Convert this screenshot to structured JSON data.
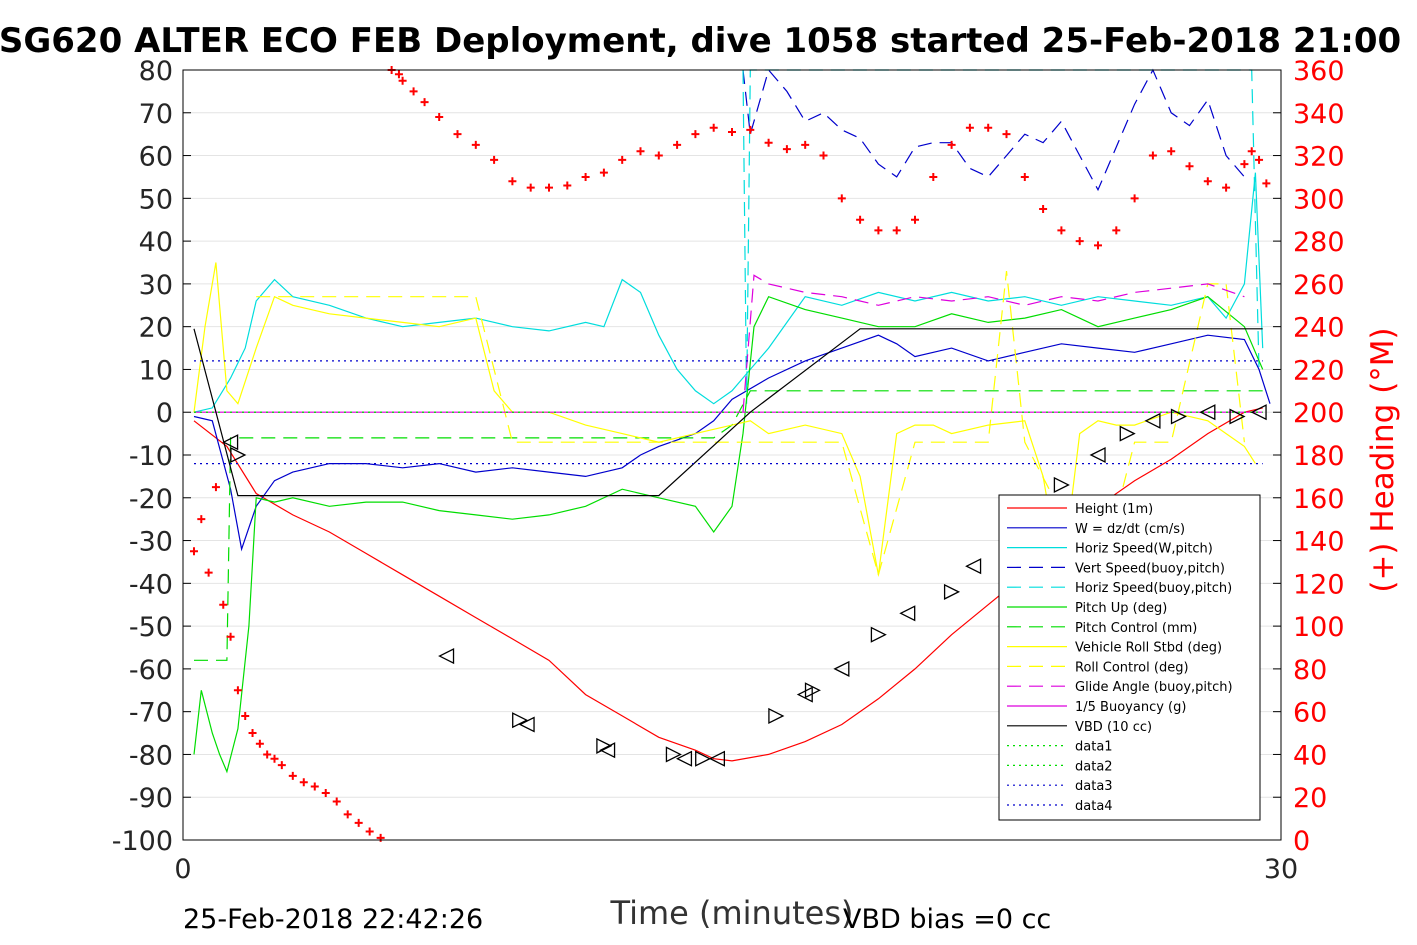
{
  "chart_data": {
    "type": "line",
    "title": "SG620 ALTER ECO FEB Deployment, dive 1058 started 25-Feb-2018 21:00",
    "xlabel": "Time (minutes)",
    "ylabel_right": "(+) Heading (°M)",
    "xlim": [
      0,
      30
    ],
    "ylim": [
      -100,
      80
    ],
    "ylim_right": [
      0,
      360
    ],
    "x_ticks": [
      "0",
      "30"
    ],
    "y_ticks": [
      "80",
      "70",
      "60",
      "50",
      "40",
      "30",
      "20",
      "10",
      "0",
      "-10",
      "-20",
      "-30",
      "-40",
      "-50",
      "-60",
      "-70",
      "-80",
      "-90",
      "-100"
    ],
    "y_right_ticks": [
      "360",
      "340",
      "320",
      "300",
      "280",
      "260",
      "240",
      "220",
      "200",
      "180",
      "160",
      "140",
      "120",
      "100",
      "80",
      "60",
      "40",
      "20",
      "0"
    ],
    "footer_left": "25-Feb-2018 22:42:26",
    "footer_right": "VBD bias =0 cc",
    "grid": "horizontal",
    "legend_position": "bottom-right",
    "series": [
      {
        "name": "Height (1m)",
        "color": "#ff0000",
        "style": "solid",
        "x": [
          0.3,
          1.2,
          2.0,
          3.0,
          4.0,
          5.0,
          6.0,
          7.0,
          8.0,
          9.0,
          10.0,
          10.5,
          11.0,
          12.0,
          13.0,
          14.0,
          14.5,
          15.0,
          16.0,
          17.0,
          18.0,
          19.0,
          20.0,
          21.0,
          22.0,
          23.0,
          24.0,
          25.0,
          26.0,
          27.0,
          28.0,
          29.0,
          29.5
        ],
        "y": [
          -2,
          -8,
          -19,
          -24,
          -28,
          -33,
          -38,
          -43,
          -48,
          -53,
          -58,
          -62,
          -66,
          -71,
          -76,
          -79,
          -81,
          -81.5,
          -80,
          -77,
          -73,
          -67,
          -60,
          -52,
          -45,
          -38,
          -30,
          -22,
          -16,
          -11,
          -5,
          0,
          1
        ]
      },
      {
        "name": "W = dz/dt (cm/s)",
        "color": "#0000cc",
        "style": "solid",
        "x": [
          0.3,
          0.8,
          1.3,
          1.6,
          2.0,
          2.5,
          3.0,
          3.5,
          4.0,
          5.0,
          6.0,
          7.0,
          8.0,
          9.0,
          10.0,
          11.0,
          12.0,
          12.5,
          13.0,
          14.0,
          14.5,
          15.0,
          16.0,
          17.0,
          18.0,
          19.0,
          19.5,
          20.0,
          21.0,
          22.0,
          23.0,
          24.0,
          25.0,
          26.0,
          27.0,
          28.0,
          29.0,
          29.4,
          29.7
        ],
        "y": [
          -1,
          -2,
          -18,
          -32,
          -22,
          -16,
          -14,
          -13,
          -12,
          -12,
          -13,
          -12,
          -14,
          -13,
          -14,
          -15,
          -13,
          -10,
          -8,
          -5,
          -2,
          3,
          8,
          12,
          15,
          18,
          16,
          13,
          15,
          12,
          14,
          16,
          15,
          14,
          16,
          18,
          17,
          10,
          2
        ]
      },
      {
        "name": "Horiz Speed(W,pitch)",
        "color": "#00dddd",
        "style": "solid",
        "x": [
          0.3,
          0.8,
          1.3,
          1.7,
          2.0,
          2.5,
          3.0,
          4.0,
          5.0,
          6.0,
          7.0,
          8.0,
          9.0,
          10.0,
          11.0,
          11.5,
          12.0,
          12.5,
          13.0,
          13.5,
          14.0,
          14.5,
          15.0,
          15.5,
          16.0,
          17.0,
          18.0,
          19.0,
          20.0,
          21.0,
          22.0,
          23.0,
          24.0,
          25.0,
          26.0,
          27.0,
          28.0,
          28.5,
          29.0,
          29.3,
          29.5
        ],
        "y": [
          0,
          1,
          8,
          15,
          26,
          31,
          27,
          25,
          22,
          20,
          21,
          22,
          20,
          19,
          21,
          20,
          31,
          28,
          18,
          10,
          5,
          2,
          5,
          10,
          15,
          27,
          25,
          28,
          26,
          28,
          26,
          27,
          25,
          27,
          26,
          25,
          27,
          22,
          30,
          56,
          15
        ]
      },
      {
        "name": "Vert Speed(buoy,pitch)",
        "color": "#0000cc",
        "style": "dashed",
        "x": [
          15.3,
          15.5,
          16.0,
          16.5,
          17.0,
          17.5,
          18.0,
          18.5,
          19.0,
          19.5,
          20.0,
          20.5,
          21.0,
          21.5,
          22.0,
          22.5,
          23.0,
          23.5,
          24.0,
          24.5,
          25.0,
          25.5,
          26.0,
          26.5,
          27.0,
          27.5,
          28.0,
          28.5,
          29.0
        ],
        "y": [
          80,
          65,
          80,
          75,
          68,
          70,
          66,
          64,
          58,
          55,
          62,
          63,
          63,
          57,
          55,
          60,
          65,
          63,
          68,
          60,
          52,
          62,
          72,
          80,
          70,
          67,
          73,
          60,
          55
        ]
      },
      {
        "name": "Horiz Speed(buoy,pitch)",
        "color": "#00dddd",
        "style": "dashed",
        "x": [
          15.3,
          15.4,
          15.5,
          29.2,
          29.4
        ],
        "y": [
          80,
          2,
          80,
          80,
          10
        ]
      },
      {
        "name": "Pitch Up (deg)",
        "color": "#00dd00",
        "style": "solid",
        "x": [
          0.3,
          0.5,
          0.8,
          1.0,
          1.2,
          1.5,
          1.8,
          2.0,
          2.5,
          3.0,
          4.0,
          5.0,
          6.0,
          7.0,
          8.0,
          9.0,
          10.0,
          11.0,
          12.0,
          13.0,
          14.0,
          14.5,
          15.0,
          15.3,
          15.6,
          16.0,
          17.0,
          18.0,
          19.0,
          20.0,
          21.0,
          22.0,
          23.0,
          24.0,
          25.0,
          26.0,
          27.0,
          28.0,
          29.0,
          29.5
        ],
        "y": [
          -80,
          -65,
          -75,
          -80,
          -84,
          -74,
          -50,
          -20,
          -21,
          -20,
          -22,
          -21,
          -21,
          -23,
          -24,
          -25,
          -24,
          -22,
          -18,
          -20,
          -22,
          -28,
          -22,
          -5,
          20,
          27,
          24,
          22,
          20,
          20,
          23,
          21,
          22,
          24,
          20,
          22,
          24,
          27,
          20,
          10
        ]
      },
      {
        "name": "Pitch Control (mm)",
        "color": "#00dd00",
        "style": "dashed",
        "x": [
          0.3,
          1.2,
          1.3,
          1.6,
          2.0,
          12.0,
          13.0,
          14.5,
          15.0,
          15.5,
          29.5
        ],
        "y": [
          -58,
          -58,
          -6,
          -6,
          -6,
          -6,
          -6,
          -6,
          -3,
          5,
          5
        ]
      },
      {
        "name": "Vehicle Roll Stbd (deg)",
        "color": "#ffff00",
        "style": "solid",
        "x": [
          0.3,
          0.6,
          0.9,
          1.2,
          1.5,
          2.0,
          2.5,
          3.0,
          4.0,
          5.0,
          6.0,
          7.0,
          8.0,
          8.5,
          9.0,
          10.0,
          11.0,
          12.0,
          13.0,
          14.0,
          15.0,
          15.5,
          16.0,
          17.0,
          18.0,
          18.5,
          19.0,
          19.5,
          20.0,
          20.5,
          21.0,
          22.0,
          23.0,
          23.5,
          24.0,
          24.5,
          25.0,
          25.5,
          26.0,
          27.0,
          28.0,
          28.5,
          29.0,
          29.3
        ],
        "y": [
          0,
          20,
          35,
          5,
          2,
          15,
          27,
          25,
          23,
          22,
          21,
          20,
          22,
          5,
          0,
          0,
          -3,
          -5,
          -7,
          -5,
          -3,
          -2,
          -5,
          -3,
          -5,
          -15,
          -38,
          -5,
          -3,
          -3,
          -5,
          -3,
          -2,
          -15,
          -40,
          -5,
          -2,
          -3,
          -3,
          0,
          -2,
          -5,
          -8,
          -12
        ]
      },
      {
        "name": "Roll Control (deg)",
        "color": "#ffff00",
        "style": "dashed",
        "x": [
          2.0,
          3.0,
          4.0,
          5.0,
          6.0,
          7.0,
          8.0,
          9.0,
          12.0,
          15.0,
          18.0,
          19.0,
          20.0,
          21.0,
          22.0,
          22.5,
          23.0,
          25.0,
          26.0,
          27.0,
          28.0,
          28.5,
          29.0
        ],
        "y": [
          27,
          27,
          27,
          27,
          27,
          27,
          27,
          -7,
          -7,
          -7,
          -7,
          -38,
          -7,
          -7,
          -7,
          33,
          -7,
          -40,
          -7,
          -7,
          30,
          30,
          -7
        ]
      },
      {
        "name": "Glide Angle (buoy,pitch)",
        "color": "#dd00dd",
        "style": "dashed",
        "x": [
          15.3,
          15.6,
          16.0,
          17.0,
          18.0,
          19.0,
          20.0,
          21.0,
          22.0,
          23.0,
          24.0,
          25.0,
          26.0,
          27.0,
          28.0,
          29.0
        ],
        "y": [
          0,
          32,
          30,
          28,
          27,
          25,
          27,
          26,
          27,
          25,
          27,
          26,
          28,
          29,
          30,
          27
        ]
      },
      {
        "name": "1/5 Buoyancy (g)",
        "color": "#dd00dd",
        "style": "solid",
        "x": [
          0.3,
          29.5
        ],
        "y": [
          0,
          0
        ]
      },
      {
        "name": "VBD (10 cc)",
        "color": "#000000",
        "style": "solid",
        "x": [
          0.3,
          1.5,
          13.0,
          15.5,
          18.5,
          29.5
        ],
        "y": [
          19.5,
          -19.5,
          -19.5,
          0,
          19.5,
          19.5
        ]
      },
      {
        "name": "data1",
        "color": "#00dd00",
        "style": "dotted",
        "x": [
          0.3,
          29.5
        ],
        "y": [
          0,
          0
        ]
      },
      {
        "name": "data2",
        "color": "#00dd00",
        "style": "dotted",
        "x": [
          0.3,
          29.5
        ],
        "y": [
          0,
          0
        ]
      },
      {
        "name": "data3",
        "color": "#0000cc",
        "style": "dotted",
        "x": [
          0.3,
          29.5
        ],
        "y": [
          12,
          12
        ]
      },
      {
        "name": "data4",
        "color": "#0000cc",
        "style": "dotted",
        "x": [
          0.3,
          29.5
        ],
        "y": [
          -12,
          -12
        ]
      }
    ],
    "heading": {
      "axis": "right",
      "color": "#ff0000",
      "marker": "+",
      "x": [
        0.3,
        0.5,
        0.7,
        0.9,
        1.1,
        1.3,
        1.5,
        1.7,
        1.9,
        2.1,
        2.3,
        2.5,
        2.7,
        3.0,
        3.3,
        3.6,
        3.9,
        4.2,
        4.5,
        4.8,
        5.1,
        5.4,
        5.7,
        5.9,
        6.0,
        6.3,
        6.6,
        7.0,
        7.5,
        8.0,
        8.5,
        9.0,
        9.5,
        10.0,
        10.5,
        11.0,
        11.5,
        12.0,
        12.5,
        13.0,
        13.5,
        14.0,
        14.5,
        15.0,
        15.5,
        16.0,
        16.5,
        17.0,
        17.5,
        18.0,
        18.5,
        19.0,
        19.5,
        20.0,
        20.5,
        21.0,
        21.5,
        22.0,
        22.5,
        23.0,
        23.5,
        24.0,
        24.5,
        25.0,
        25.5,
        26.0,
        26.5,
        27.0,
        27.5,
        28.0,
        28.5,
        29.0,
        29.2,
        29.4,
        29.6
      ],
      "y": [
        135,
        150,
        125,
        165,
        110,
        95,
        70,
        58,
        50,
        45,
        40,
        38,
        35,
        30,
        27,
        25,
        22,
        18,
        12,
        8,
        4,
        1,
        360,
        358,
        355,
        350,
        345,
        338,
        330,
        325,
        318,
        308,
        305,
        305,
        306,
        310,
        312,
        318,
        322,
        320,
        325,
        330,
        333,
        331,
        332,
        326,
        323,
        325,
        320,
        300,
        290,
        285,
        285,
        290,
        310,
        325,
        333,
        333,
        330,
        310,
        295,
        285,
        280,
        278,
        285,
        300,
        320,
        322,
        315,
        308,
        305,
        316,
        322,
        318,
        307
      ]
    },
    "markers": {
      "color": "#000000",
      "style": "triangle",
      "x": [
        1.3,
        1.5,
        7.2,
        9.2,
        9.4,
        11.5,
        11.6,
        13.4,
        13.7,
        14.2,
        14.6,
        16.2,
        17.0,
        17.2,
        18.0,
        19.0,
        19.8,
        21.0,
        21.6,
        22.5,
        23.2,
        24.0,
        25.0,
        25.8,
        26.5,
        27.2,
        28.0,
        28.8,
        29.4
      ],
      "y": [
        -7,
        -10,
        -57,
        -72,
        -73,
        -78,
        -79,
        -80,
        -81,
        -81,
        -81,
        -71,
        -66,
        -65,
        -60,
        -52,
        -47,
        -42,
        -36,
        -29,
        -23,
        -17,
        -10,
        -5,
        -2,
        -1,
        0,
        -1,
        0
      ]
    }
  }
}
